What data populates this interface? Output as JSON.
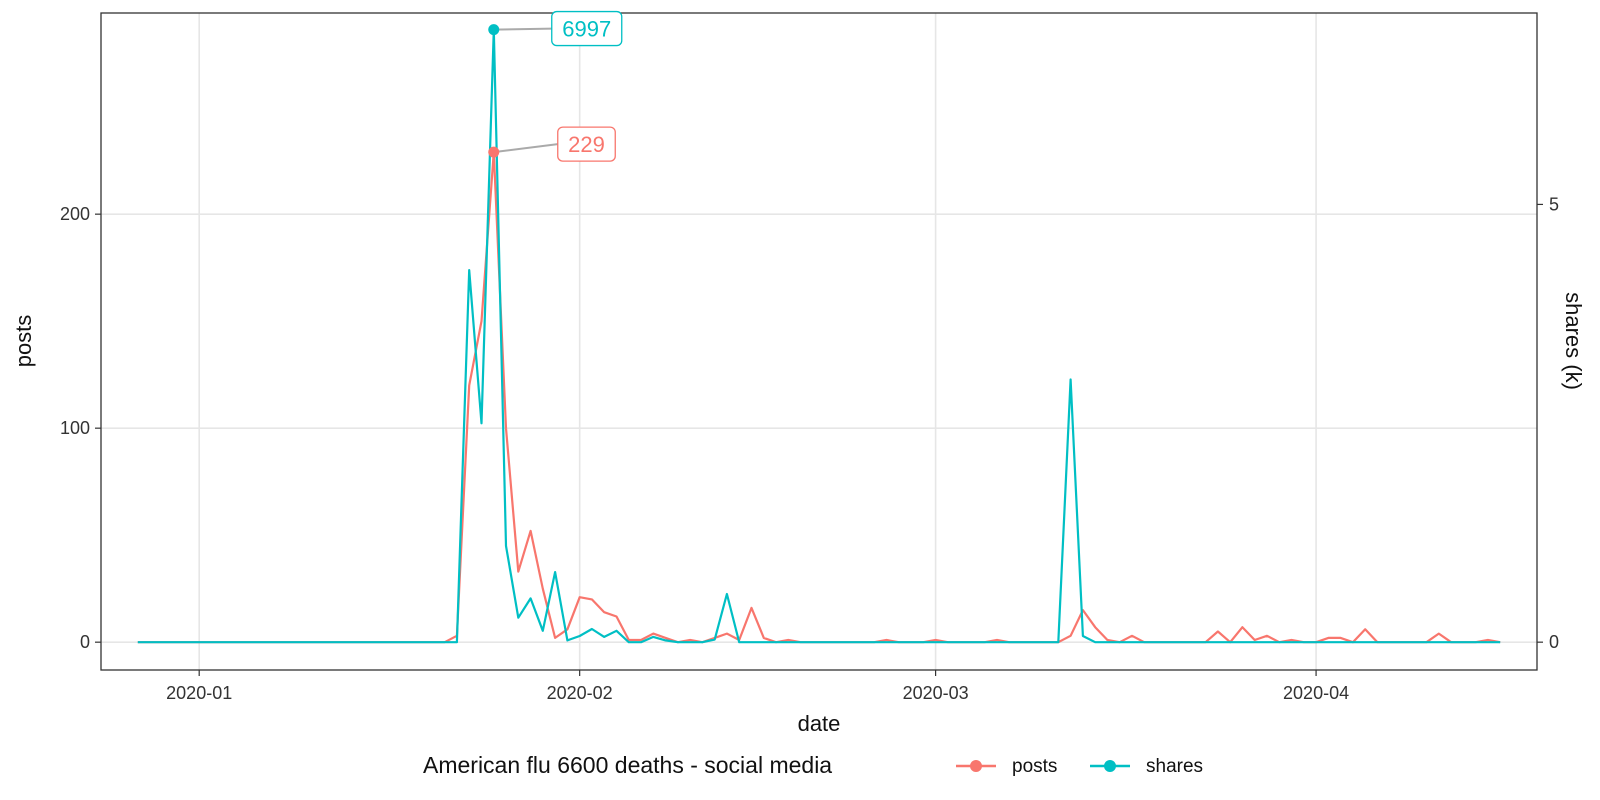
{
  "chart_data": {
    "type": "line",
    "xlabel": "date",
    "ylabel": "posts",
    "y2label": "shares (k)",
    "xlim": [
      "2019-12-24",
      "2020-04-19"
    ],
    "ylim": [
      -13,
      294
    ],
    "y2lim": [
      -0.3179,
      7.1864
    ],
    "x_ticks": [
      "2020-01-01",
      "2020-02-01",
      "2020-03-01",
      "2020-04-01"
    ],
    "x_tick_labels": [
      "2020-01",
      "2020-02",
      "2020-03",
      "2020-04"
    ],
    "y_ticks": [
      0,
      100,
      200
    ],
    "y2_ticks": [
      0,
      5
    ],
    "grid": true,
    "legend": {
      "title": "American flu 6600 deaths - social media",
      "position": "bottom",
      "entries": [
        {
          "label": "posts",
          "color": "#F8766D"
        },
        {
          "label": "shares",
          "color": "#00BFC4"
        }
      ]
    },
    "series": [
      {
        "name": "posts",
        "axis": "left",
        "color": "#F8766D",
        "points": [
          [
            "2019-12-27",
            0
          ],
          [
            "2020-01-01",
            0
          ],
          [
            "2020-01-05",
            0
          ],
          [
            "2020-01-10",
            0
          ],
          [
            "2020-01-15",
            0
          ],
          [
            "2020-01-20",
            0
          ],
          [
            "2020-01-21",
            0
          ],
          [
            "2020-01-22",
            3
          ],
          [
            "2020-01-23",
            120
          ],
          [
            "2020-01-24",
            150
          ],
          [
            "2020-01-25",
            229
          ],
          [
            "2020-01-26",
            100
          ],
          [
            "2020-01-27",
            33
          ],
          [
            "2020-01-28",
            52
          ],
          [
            "2020-01-29",
            25
          ],
          [
            "2020-01-30",
            2
          ],
          [
            "2020-01-31",
            6
          ],
          [
            "2020-02-01",
            21
          ],
          [
            "2020-02-02",
            20
          ],
          [
            "2020-02-03",
            14
          ],
          [
            "2020-02-04",
            12
          ],
          [
            "2020-02-05",
            1
          ],
          [
            "2020-02-06",
            1
          ],
          [
            "2020-02-07",
            4
          ],
          [
            "2020-02-08",
            2
          ],
          [
            "2020-02-09",
            0
          ],
          [
            "2020-02-10",
            1
          ],
          [
            "2020-02-11",
            0
          ],
          [
            "2020-02-12",
            2
          ],
          [
            "2020-02-13",
            4
          ],
          [
            "2020-02-14",
            1
          ],
          [
            "2020-02-15",
            16
          ],
          [
            "2020-02-16",
            2
          ],
          [
            "2020-02-17",
            0
          ],
          [
            "2020-02-18",
            1
          ],
          [
            "2020-02-19",
            0
          ],
          [
            "2020-02-20",
            0
          ],
          [
            "2020-02-21",
            0
          ],
          [
            "2020-02-22",
            0
          ],
          [
            "2020-02-23",
            0
          ],
          [
            "2020-02-24",
            0
          ],
          [
            "2020-02-25",
            0
          ],
          [
            "2020-02-26",
            1
          ],
          [
            "2020-02-27",
            0
          ],
          [
            "2020-02-28",
            0
          ],
          [
            "2020-02-29",
            0
          ],
          [
            "2020-03-01",
            1
          ],
          [
            "2020-03-02",
            0
          ],
          [
            "2020-03-03",
            0
          ],
          [
            "2020-03-04",
            0
          ],
          [
            "2020-03-05",
            0
          ],
          [
            "2020-03-06",
            1
          ],
          [
            "2020-03-07",
            0
          ],
          [
            "2020-03-08",
            0
          ],
          [
            "2020-03-09",
            0
          ],
          [
            "2020-03-10",
            0
          ],
          [
            "2020-03-11",
            0
          ],
          [
            "2020-03-12",
            3
          ],
          [
            "2020-03-13",
            15
          ],
          [
            "2020-03-14",
            7
          ],
          [
            "2020-03-15",
            1
          ],
          [
            "2020-03-16",
            0
          ],
          [
            "2020-03-17",
            3
          ],
          [
            "2020-03-18",
            0
          ],
          [
            "2020-03-19",
            0
          ],
          [
            "2020-03-20",
            0
          ],
          [
            "2020-03-21",
            0
          ],
          [
            "2020-03-22",
            0
          ],
          [
            "2020-03-23",
            0
          ],
          [
            "2020-03-24",
            5
          ],
          [
            "2020-03-25",
            0
          ],
          [
            "2020-03-26",
            7
          ],
          [
            "2020-03-27",
            1
          ],
          [
            "2020-03-28",
            3
          ],
          [
            "2020-03-29",
            0
          ],
          [
            "2020-03-30",
            1
          ],
          [
            "2020-03-31",
            0
          ],
          [
            "2020-04-01",
            0
          ],
          [
            "2020-04-02",
            2
          ],
          [
            "2020-04-03",
            2
          ],
          [
            "2020-04-04",
            0
          ],
          [
            "2020-04-05",
            6
          ],
          [
            "2020-04-06",
            0
          ],
          [
            "2020-04-07",
            0
          ],
          [
            "2020-04-08",
            0
          ],
          [
            "2020-04-09",
            0
          ],
          [
            "2020-04-10",
            0
          ],
          [
            "2020-04-11",
            4
          ],
          [
            "2020-04-12",
            0
          ],
          [
            "2020-04-13",
            0
          ],
          [
            "2020-04-14",
            0
          ],
          [
            "2020-04-15",
            1
          ],
          [
            "2020-04-16",
            0
          ]
        ]
      },
      {
        "name": "shares",
        "axis": "right",
        "color": "#00BFC4",
        "points": [
          [
            "2019-12-27",
            0
          ],
          [
            "2020-01-01",
            0
          ],
          [
            "2020-01-10",
            0
          ],
          [
            "2020-01-20",
            0
          ],
          [
            "2020-01-21",
            0
          ],
          [
            "2020-01-22",
            0
          ],
          [
            "2020-01-23",
            4.25
          ],
          [
            "2020-01-24",
            2.5
          ],
          [
            "2020-01-25",
            6.997
          ],
          [
            "2020-01-26",
            1.1
          ],
          [
            "2020-01-27",
            0.28
          ],
          [
            "2020-01-28",
            0.5
          ],
          [
            "2020-01-29",
            0.13
          ],
          [
            "2020-01-30",
            0.8
          ],
          [
            "2020-01-31",
            0.02
          ],
          [
            "2020-02-01",
            0.07
          ],
          [
            "2020-02-02",
            0.15
          ],
          [
            "2020-02-03",
            0.06
          ],
          [
            "2020-02-04",
            0.13
          ],
          [
            "2020-02-05",
            0
          ],
          [
            "2020-02-06",
            0
          ],
          [
            "2020-02-07",
            0.06
          ],
          [
            "2020-02-08",
            0.02
          ],
          [
            "2020-02-09",
            0
          ],
          [
            "2020-02-10",
            0
          ],
          [
            "2020-02-11",
            0
          ],
          [
            "2020-02-12",
            0.03
          ],
          [
            "2020-02-13",
            0.55
          ],
          [
            "2020-02-14",
            0
          ],
          [
            "2020-02-15",
            0
          ],
          [
            "2020-02-16",
            0
          ],
          [
            "2020-02-20",
            0
          ],
          [
            "2020-03-01",
            0
          ],
          [
            "2020-03-11",
            0
          ],
          [
            "2020-03-12",
            3
          ],
          [
            "2020-03-13",
            0.07
          ],
          [
            "2020-03-14",
            0
          ],
          [
            "2020-03-20",
            0
          ],
          [
            "2020-04-01",
            0
          ],
          [
            "2020-04-16",
            0
          ]
        ]
      }
    ],
    "annotations": [
      {
        "label": "6997",
        "series": "shares",
        "x": "2020-01-25",
        "y": 6.997
      },
      {
        "label": "229",
        "series": "posts",
        "x": "2020-01-25",
        "y": 229
      }
    ]
  }
}
